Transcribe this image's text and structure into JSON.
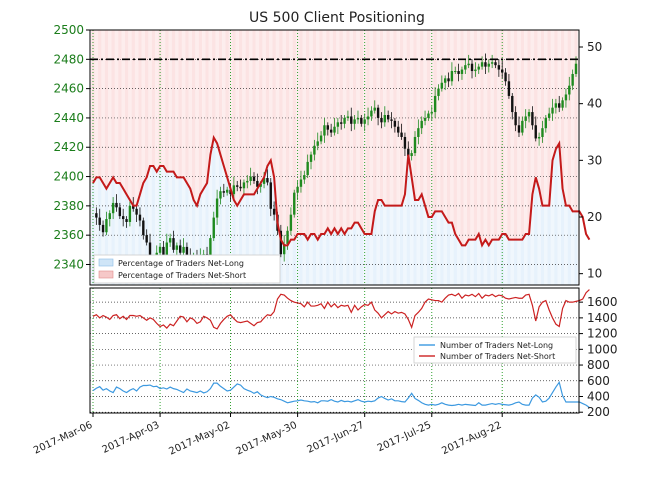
{
  "chart_data": [
    {
      "type": "candlestick",
      "title": "US 500 Client Positioning",
      "yticks_left": [
        2340,
        2360,
        2380,
        2400,
        2420,
        2440,
        2460,
        2480,
        2500
      ],
      "ylim_left": [
        2326,
        2500
      ],
      "yticks_right": [
        10,
        20,
        30,
        40,
        50
      ],
      "ylim_right": [
        8,
        53
      ],
      "reference_line": {
        "axis": "left",
        "value": 2480,
        "style": "dash-dot"
      },
      "price_close": [
        2375,
        2372,
        2367,
        2362,
        2371,
        2375,
        2382,
        2379,
        2373,
        2371,
        2369,
        2380,
        2378,
        2374,
        2370,
        2360,
        2355,
        2342,
        2340,
        2348,
        2352,
        2345,
        2355,
        2358,
        2350,
        2353,
        2348,
        2352,
        2346,
        2342,
        2346,
        2341,
        2345,
        2347,
        2343,
        2358,
        2372,
        2385,
        2390,
        2389,
        2391,
        2388,
        2394,
        2393,
        2392,
        2396,
        2397,
        2400,
        2397,
        2393,
        2395,
        2399,
        2396,
        2378,
        2374,
        2363,
        2347,
        2354,
        2363,
        2374,
        2389,
        2393,
        2398,
        2401,
        2410,
        2415,
        2421,
        2424,
        2428,
        2435,
        2432,
        2430,
        2434,
        2437,
        2436,
        2440,
        2441,
        2436,
        2439,
        2440,
        2436,
        2439,
        2441,
        2445,
        2447,
        2440,
        2437,
        2442,
        2439,
        2438,
        2434,
        2430,
        2427,
        2419,
        2414,
        2416,
        2427,
        2433,
        2438,
        2440,
        2443,
        2444,
        2455,
        2460,
        2464,
        2467,
        2465,
        2472,
        2472,
        2470,
        2473,
        2476,
        2477,
        2472,
        2473,
        2475,
        2478,
        2475,
        2477,
        2478,
        2476,
        2473,
        2471,
        2465,
        2455,
        2444,
        2435,
        2430,
        2438,
        2441,
        2444,
        2435,
        2426,
        2427,
        2433,
        2440,
        2443,
        2447,
        2450,
        2447,
        2452,
        2456,
        2462,
        2470,
        2477
      ],
      "sentiment_pct": {
        "net_long_name": "Percentage of Traders Net-Long",
        "net_short_name": "Percentage of Traders Net-Short",
        "values": [
          26,
          27,
          27,
          26,
          25,
          26,
          27,
          26,
          26,
          25,
          24,
          23,
          22,
          22,
          24,
          26,
          27,
          29,
          29,
          28,
          29,
          29,
          28,
          28,
          28,
          27,
          27,
          27,
          26,
          25,
          23,
          22,
          24,
          25,
          26,
          31,
          34,
          33,
          31,
          29,
          27,
          25,
          23,
          22,
          23,
          24,
          24,
          24,
          24,
          25,
          26,
          27,
          29,
          30,
          27,
          19,
          16,
          15,
          15,
          16,
          16,
          17,
          17,
          17,
          16,
          17,
          17,
          16,
          17,
          17,
          18,
          17,
          18,
          17,
          18,
          17,
          18,
          18,
          19,
          19,
          18,
          17,
          17,
          17,
          21,
          23,
          23,
          22,
          22,
          22,
          22,
          22,
          22,
          24,
          31,
          27,
          23,
          23,
          24,
          22,
          20,
          20,
          21,
          21,
          21,
          20,
          19,
          19,
          17,
          16,
          15,
          15,
          16,
          16,
          16,
          17,
          15,
          16,
          15,
          16,
          16,
          16,
          17,
          17,
          16,
          16,
          16,
          16,
          16,
          17,
          17,
          24,
          27,
          25,
          22,
          22,
          22,
          30,
          32,
          33,
          25,
          22,
          22,
          21,
          21,
          21,
          20,
          17,
          16
        ]
      }
    },
    {
      "type": "line",
      "yticks": [
        200,
        400,
        600,
        800,
        1000,
        1200,
        1400,
        1600
      ],
      "ylim": [
        190,
        1780
      ],
      "series": [
        {
          "name": "Number of Traders Net-Long",
          "color": "#3c99e0",
          "values": [
            475,
            505,
            525,
            480,
            500,
            470,
            450,
            520,
            500,
            470,
            450,
            480,
            500,
            470,
            520,
            540,
            540,
            545,
            525,
            530,
            500,
            510,
            495,
            520,
            500,
            490,
            470,
            450,
            495,
            470,
            460,
            450,
            470,
            445,
            460,
            500,
            570,
            570,
            530,
            500,
            470,
            480,
            520,
            560,
            545,
            500,
            480,
            465,
            440,
            460,
            420,
            400,
            385,
            400,
            390,
            370,
            360,
            340,
            320,
            330,
            340,
            345,
            355,
            345,
            340,
            330,
            335,
            320,
            345,
            345,
            340,
            360,
            340,
            330,
            350,
            335,
            340,
            330,
            345,
            360,
            340,
            330,
            340,
            335,
            345,
            380,
            400,
            375,
            355,
            370,
            345,
            345,
            335,
            330,
            380,
            440,
            375,
            350,
            320,
            300,
            290,
            300,
            290,
            300,
            320,
            300,
            290,
            285,
            290,
            300,
            290,
            300,
            295,
            290,
            285,
            320,
            290,
            290,
            300,
            310,
            300,
            310,
            300,
            295,
            290,
            300,
            320,
            330,
            300,
            290,
            290,
            380,
            420,
            390,
            330,
            340,
            380,
            450,
            520,
            580,
            410,
            330,
            330,
            330,
            330,
            330,
            310,
            290,
            260
          ]
        },
        {
          "name": "Number of Traders Net-Short",
          "color": "#cc2222",
          "values": [
            1420,
            1440,
            1400,
            1430,
            1410,
            1380,
            1430,
            1440,
            1390,
            1420,
            1380,
            1430,
            1430,
            1420,
            1430,
            1400,
            1370,
            1400,
            1380,
            1330,
            1290,
            1310,
            1270,
            1320,
            1300,
            1360,
            1420,
            1410,
            1350,
            1400,
            1380,
            1330,
            1350,
            1420,
            1400,
            1370,
            1280,
            1260,
            1330,
            1380,
            1420,
            1440,
            1390,
            1350,
            1340,
            1350,
            1360,
            1330,
            1300,
            1340,
            1350,
            1400,
            1440,
            1430,
            1480,
            1640,
            1700,
            1690,
            1650,
            1620,
            1600,
            1590,
            1580,
            1540,
            1600,
            1550,
            1550,
            1560,
            1580,
            1520,
            1600,
            1540,
            1580,
            1530,
            1560,
            1550,
            1560,
            1470,
            1560,
            1500,
            1540,
            1570,
            1560,
            1600,
            1500,
            1460,
            1400,
            1440,
            1480,
            1450,
            1480,
            1460,
            1470,
            1450,
            1380,
            1280,
            1430,
            1470,
            1520,
            1600,
            1640,
            1630,
            1620,
            1620,
            1600,
            1650,
            1690,
            1700,
            1680,
            1710,
            1650,
            1690,
            1680,
            1700,
            1670,
            1710,
            1650,
            1690,
            1680,
            1700,
            1670,
            1690,
            1680,
            1650,
            1640,
            1650,
            1660,
            1650,
            1650,
            1690,
            1700,
            1560,
            1360,
            1540,
            1600,
            1620,
            1500,
            1400,
            1320,
            1290,
            1520,
            1620,
            1600,
            1600,
            1610,
            1620,
            1640,
            1720,
            1760
          ]
        }
      ]
    }
  ],
  "x_axis": {
    "tick_labels": [
      "2017-Mar-06",
      "2017-Apr-03",
      "2017-May-02",
      "2017-May-30",
      "2017-Jun-27",
      "2017-Jul-25",
      "2017-Aug-22"
    ],
    "tick_index": [
      0,
      20,
      41,
      61,
      81,
      101,
      122
    ]
  }
}
